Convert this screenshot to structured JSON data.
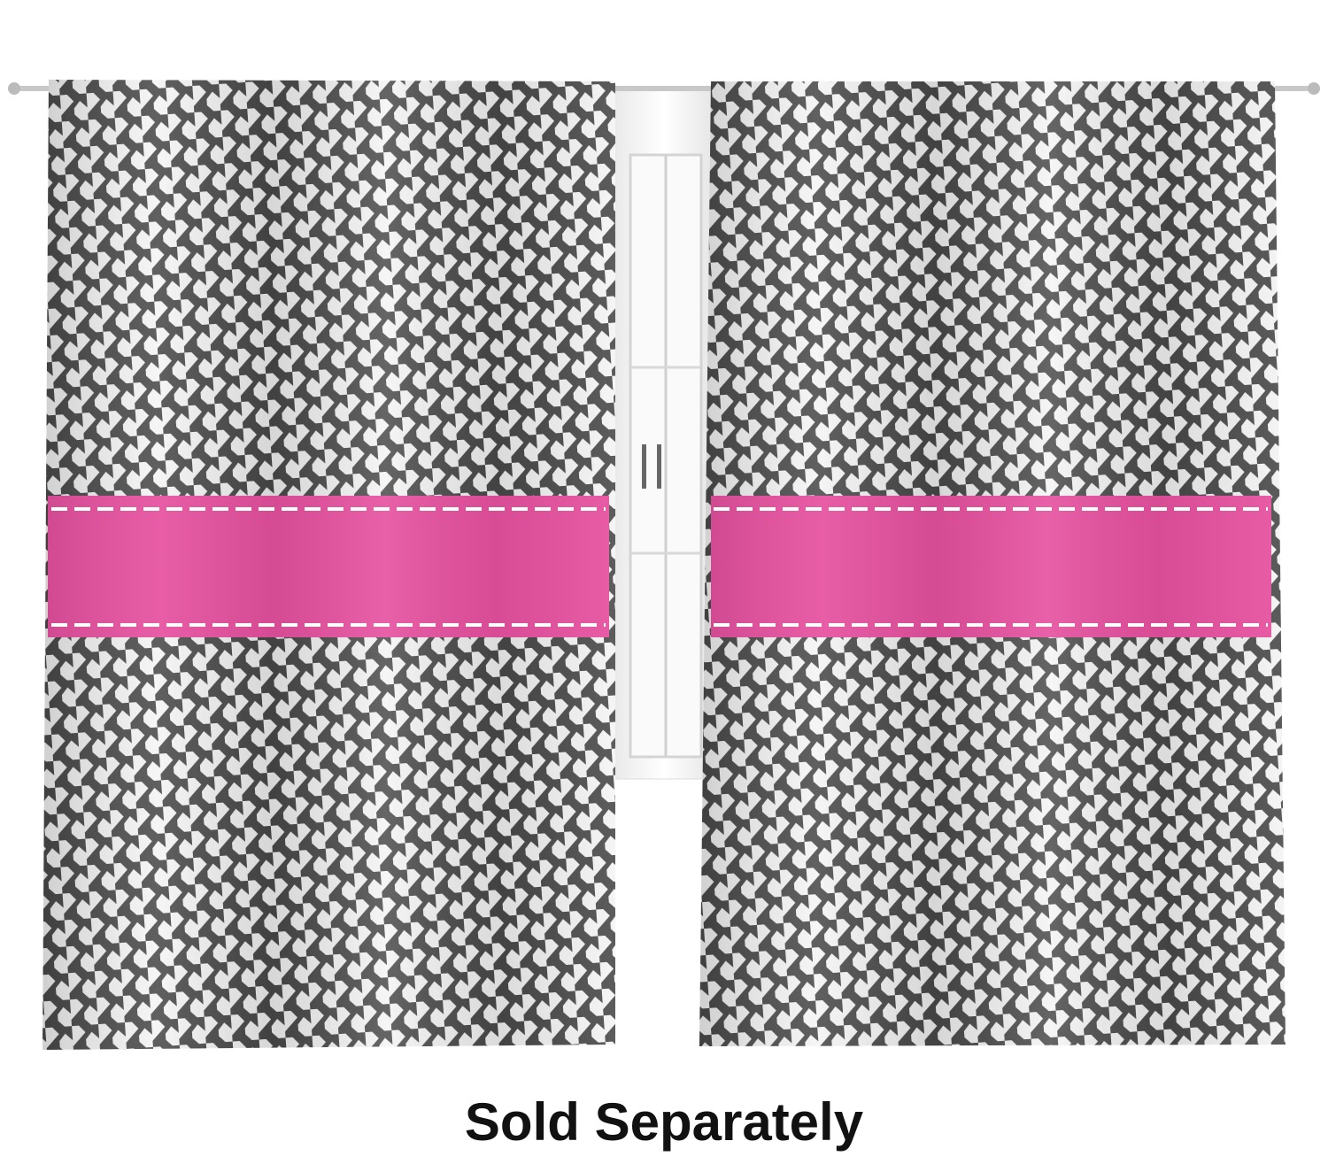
{
  "caption": "Sold Separately"
}
